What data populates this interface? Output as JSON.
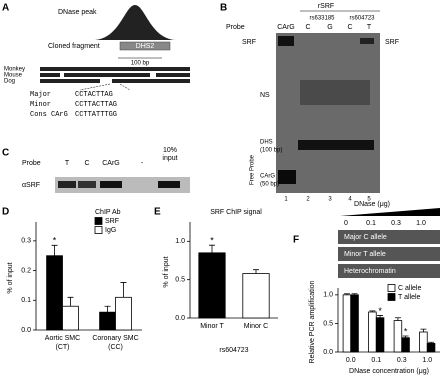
{
  "panel_a": {
    "label": "A",
    "dnase_peak": "DNase peak",
    "cloned_fragment": "Cloned fragment",
    "fragment_name": "DHS2",
    "scale": "100 bp",
    "species": [
      "Monkey",
      "Mouse",
      "Dog"
    ],
    "sequences": [
      {
        "name": "Major",
        "seq": "CCTACTTAG"
      },
      {
        "name": "Minor",
        "seq": "CCTTACTTAG"
      },
      {
        "name": "Cons CArG",
        "seq": "CCTTATTTGG"
      }
    ]
  },
  "panel_b": {
    "label": "B",
    "protein": "rSRF",
    "probe": "Probe",
    "probes": [
      "CArG",
      "C",
      "G",
      "C",
      "T"
    ],
    "snps": [
      "rs633185",
      "rs604723"
    ],
    "srf_left": "SRF",
    "srf_right": "SRF",
    "ns": "NS",
    "dhs": "DHS",
    "dhs_size": "(100 bp)",
    "free_probe": "Free Probe",
    "carg": "CArG",
    "carg_size": "(50 bp)",
    "lanes": [
      "1",
      "2",
      "3",
      "4",
      "5"
    ]
  },
  "panel_c": {
    "label": "C",
    "probe": "Probe",
    "probes": [
      "T",
      "C",
      "CArG",
      "-"
    ],
    "input_pct": "10%",
    "input": "input",
    "antibody": "αSRF"
  },
  "panel_f_gel": {
    "label": "F",
    "title": "DNase (μg)",
    "doses": [
      "0",
      "0.1",
      "0.3",
      "1.0"
    ],
    "rows": [
      "Major C allele",
      "Minor T allele",
      "Heterochromatin"
    ]
  },
  "chart_data": [
    {
      "type": "bar",
      "label": "D",
      "ylabel": "% of input",
      "legend_title": "ChIP Ab",
      "categories": [
        "Aortic SMC",
        "Coronary SMC"
      ],
      "category_notes": [
        "(CT)",
        "(CC)"
      ],
      "series": [
        {
          "name": "SRF",
          "color": "#000000",
          "values": [
            0.25,
            0.06
          ],
          "errors": [
            0.035,
            0.02
          ],
          "sig": [
            "*",
            null
          ]
        },
        {
          "name": "IgG",
          "color": "#ffffff",
          "values": [
            0.08,
            0.11
          ],
          "errors": [
            0.03,
            0.05
          ]
        }
      ],
      "ylim": [
        0,
        0.35
      ],
      "yticks": [
        {
          "value": 0,
          "label": "0.0"
        },
        0.1,
        0.2,
        0.3
      ]
    },
    {
      "type": "bar",
      "label": "E",
      "title": "SRF ChIP signal",
      "ylabel": "% of input",
      "xlabel": "rs604723",
      "categories": [
        "Minor T",
        "Minor C"
      ],
      "series": [
        {
          "colors": [
            "#000000",
            "#ffffff"
          ],
          "values": [
            0.85,
            0.58
          ],
          "errors": [
            0.1,
            0.05
          ],
          "sig": [
            "*",
            null
          ]
        }
      ],
      "ylim": [
        0,
        1.2
      ],
      "yticks": [
        {
          "value": 0,
          "label": "0.0"
        },
        0.5,
        {
          "value": 1,
          "label": "1.0"
        }
      ]
    },
    {
      "type": "bar",
      "ylabel": "Relative PCR amplification",
      "xlabel": "DNase concentration (μg)",
      "categories": [
        "0.0",
        "0.1",
        "0.3",
        "1.0"
      ],
      "series": [
        {
          "name": "C allele",
          "color": "#ffffff",
          "values": [
            1.0,
            0.7,
            0.55,
            0.35
          ],
          "errors": [
            0.02,
            0.02,
            0.05,
            0.05
          ]
        },
        {
          "name": "T allele",
          "color": "#000000",
          "values": [
            1.0,
            0.6,
            0.25,
            0.15
          ],
          "errors": [
            0.02,
            0.04,
            0.03,
            0.02
          ],
          "sig": [
            null,
            "*",
            "*",
            null
          ]
        }
      ],
      "ylim": [
        0,
        1.05
      ],
      "yticks": [
        {
          "value": 0,
          "label": "0.0"
        },
        0.5,
        {
          "value": 1,
          "label": "1.0"
        }
      ]
    }
  ]
}
